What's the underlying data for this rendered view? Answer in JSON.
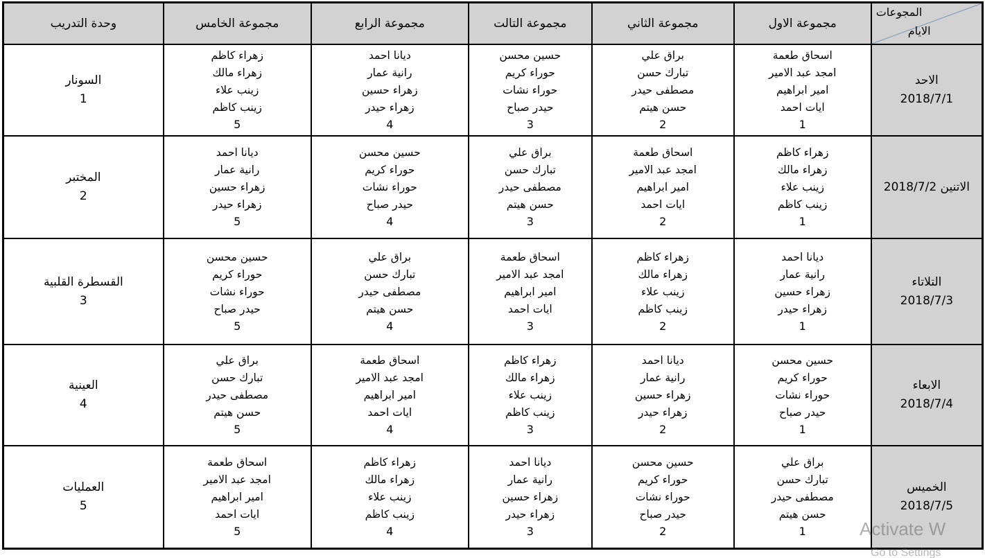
{
  "colors": {
    "header_bg": "#d2d2d2",
    "grid": "#000000",
    "diagonal": "#8aa0bb",
    "watermark": "#6e6e6e"
  },
  "table": {
    "corner": {
      "groups_label": "المجوعات",
      "days_label": "الايام"
    },
    "group_headers": [
      "مجموعة الاول",
      "مجموعة الثاني",
      "مجموعة التالت",
      "مجموعة الرابع",
      "مجموعة الخامس"
    ],
    "unit_header": "وحدة التدريب",
    "rows": [
      {
        "day_lines": [
          "الاحد",
          "2018/7/1"
        ],
        "groups": [
          {
            "names": [
              "اسحاق طعمة",
              "امجد عبد الامير",
              "امير ابراهيم",
              "ايات احمد"
            ],
            "num": "1"
          },
          {
            "names": [
              "براق علي",
              "تبارك حسن",
              "مصطفى حيدر",
              "حسن هيتم"
            ],
            "num": "2"
          },
          {
            "names": [
              "حسين محسن",
              "حوراء كريم",
              "حوراء نشات",
              "حيدر صباح"
            ],
            "num": "3"
          },
          {
            "names": [
              "ديانا احمد",
              "رانية عمار",
              "زهراء حسين",
              "زهراء حيدر"
            ],
            "num": "4"
          },
          {
            "names": [
              "زهراء كاظم",
              "زهراء مالك",
              "زينب علاء",
              "زينب كاظم"
            ],
            "num": "5"
          }
        ],
        "unit": {
          "name": "السونار",
          "num": "1"
        }
      },
      {
        "day_lines": [
          "الاتنين 2018/7/2"
        ],
        "groups": [
          {
            "names": [
              "زهراء كاظم",
              "زهراء مالك",
              "زينب علاء",
              "زينب كاظم"
            ],
            "num": "1"
          },
          {
            "names": [
              "اسحاق طعمة",
              "امجد عبد الامير",
              "امير ابراهيم",
              "ايات احمد"
            ],
            "num": "2"
          },
          {
            "names": [
              "براق علي",
              "تبارك حسن",
              "مصطفى حيدر",
              "حسن هيتم"
            ],
            "num": "3"
          },
          {
            "names": [
              "حسين محسن",
              "حوراء كريم",
              "حوراء نشات",
              "حيدر صباح"
            ],
            "num": "4"
          },
          {
            "names": [
              "ديانا احمد",
              "رانية عمار",
              "زهراء حسين",
              "زهراء حيدر"
            ],
            "num": "5"
          }
        ],
        "unit": {
          "name": "المختبر",
          "num": "2"
        }
      },
      {
        "day_lines": [
          "التلاتاء",
          "2018/7/3"
        ],
        "groups": [
          {
            "names": [
              "ديانا احمد",
              "رانية عمار",
              "زهراء حسين",
              "زهراء حيدر"
            ],
            "num": "1"
          },
          {
            "names": [
              "زهراء كاظم",
              "زهراء مالك",
              "زينب علاء",
              "زينب كاظم"
            ],
            "num": "2"
          },
          {
            "names": [
              "اسحاق طعمة",
              "امجد عبد الامير",
              "امير ابراهيم",
              "ايات احمد"
            ],
            "num": "3"
          },
          {
            "names": [
              "براق علي",
              "تبارك حسن",
              "مصطفى حيدر",
              "حسن هيتم"
            ],
            "num": "4"
          },
          {
            "names": [
              "حسين محسن",
              "حوراء كريم",
              "حوراء نشات",
              "حيدر صباح"
            ],
            "num": "5"
          }
        ],
        "unit": {
          "name": "القسطرة القلبية",
          "num": "3"
        }
      },
      {
        "day_lines": [
          "الابعاء",
          "2018/7/4"
        ],
        "groups": [
          {
            "names": [
              "حسين محسن",
              "حوراء كريم",
              "حوراء نشات",
              "حيدر صباح"
            ],
            "num": "1"
          },
          {
            "names": [
              "ديانا احمد",
              "رانية عمار",
              "زهراء حسين",
              "زهراء حيدر"
            ],
            "num": "2"
          },
          {
            "names": [
              "زهراء كاظم",
              "زهراء مالك",
              "زينب علاء",
              "زينب كاظم"
            ],
            "num": "3"
          },
          {
            "names": [
              "اسحاق طعمة",
              "امجد عبد الامير",
              "امير ابراهيم",
              "ايات احمد"
            ],
            "num": "4"
          },
          {
            "names": [
              "براق علي",
              "تبارك حسن",
              "مصطفى حيدر",
              "حسن هيتم"
            ],
            "num": "5"
          }
        ],
        "unit": {
          "name": "العينية",
          "num": "4"
        }
      },
      {
        "day_lines": [
          "الخميس",
          "2018/7/5"
        ],
        "groups": [
          {
            "names": [
              "براق علي",
              "تبارك حسن",
              "مصطفى حيدر",
              "حسن هيتم"
            ],
            "num": "1"
          },
          {
            "names": [
              "حسين محسن",
              "حوراء كريم",
              "حوراء نشات",
              "حيدر صباح"
            ],
            "num": "2"
          },
          {
            "names": [
              "ديانا احمد",
              "رانية عمار",
              "زهراء حسين",
              "زهراء حيدر"
            ],
            "num": "3"
          },
          {
            "names": [
              "زهراء كاظم",
              "زهراء مالك",
              "زينب علاء",
              "زينب كاظم"
            ],
            "num": "4"
          },
          {
            "names": [
              "اسحاق طعمة",
              "امجد عبد الامير",
              "امير ابراهيم",
              "ايات احمد"
            ],
            "num": "5"
          }
        ],
        "unit": {
          "name": "العمليات",
          "num": "5"
        }
      }
    ]
  },
  "watermark": {
    "line1": "Activate W",
    "line2": "Go to Settings"
  }
}
